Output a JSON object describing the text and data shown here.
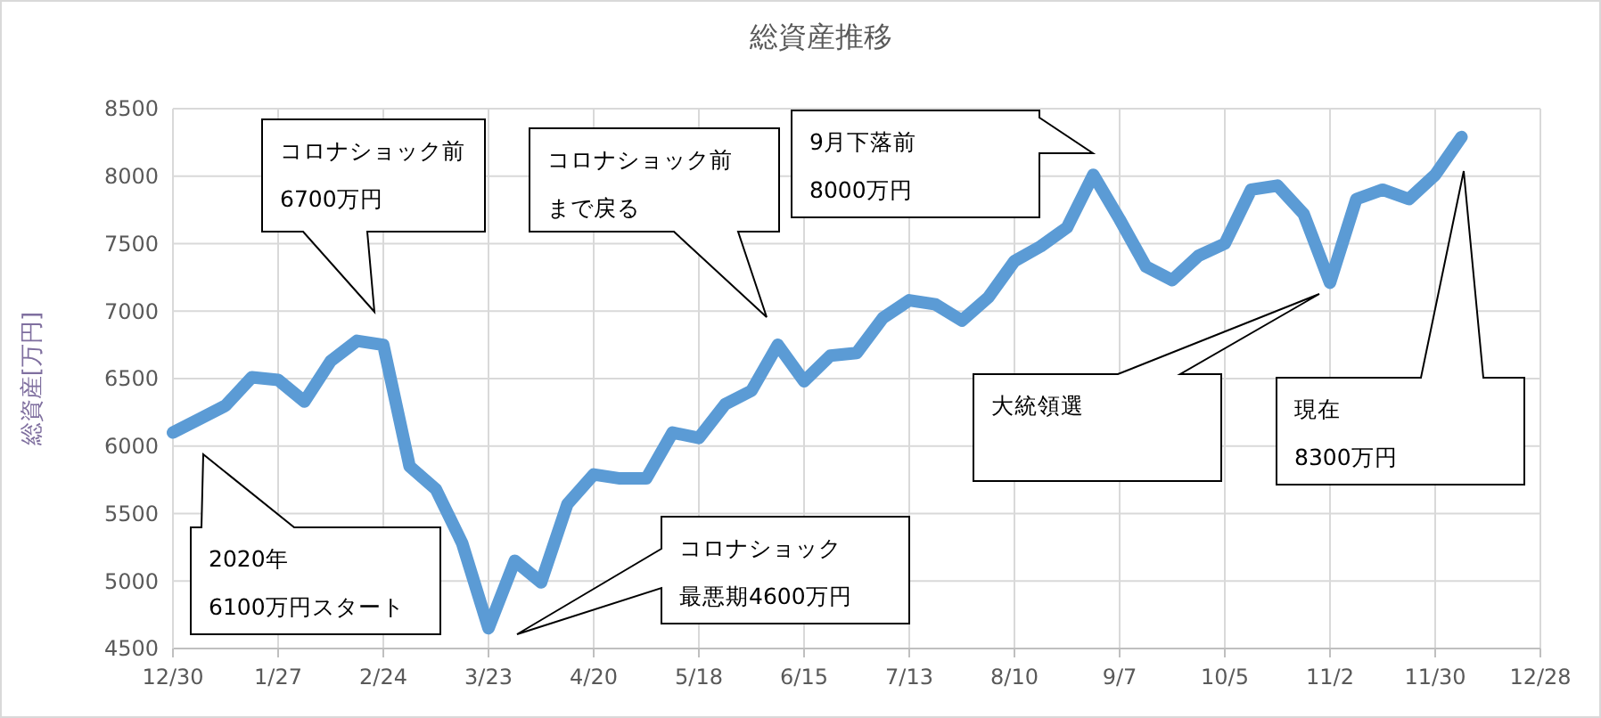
{
  "chart_data": {
    "type": "line",
    "title": "総資産推移",
    "ylabel": "総資産[万円]",
    "x": [
      "2019-12-30",
      "2020-01-06",
      "2020-01-13",
      "2020-01-20",
      "2020-01-27",
      "2020-02-03",
      "2020-02-10",
      "2020-02-17",
      "2020-02-24",
      "2020-03-02",
      "2020-03-09",
      "2020-03-16",
      "2020-03-23",
      "2020-03-30",
      "2020-04-06",
      "2020-04-13",
      "2020-04-20",
      "2020-04-27",
      "2020-05-04",
      "2020-05-11",
      "2020-05-18",
      "2020-05-25",
      "2020-06-01",
      "2020-06-08",
      "2020-06-15",
      "2020-06-22",
      "2020-06-29",
      "2020-07-06",
      "2020-07-13",
      "2020-07-20",
      "2020-07-27",
      "2020-08-03",
      "2020-08-10",
      "2020-08-17",
      "2020-08-24",
      "2020-08-31",
      "2020-09-07",
      "2020-09-14",
      "2020-09-21",
      "2020-09-28",
      "2020-10-05",
      "2020-10-12",
      "2020-10-19",
      "2020-10-26",
      "2020-11-02",
      "2020-11-09",
      "2020-11-16",
      "2020-11-23",
      "2020-11-30",
      "2020-12-07"
    ],
    "series": [
      {
        "color": "#5b9bd5",
        "values": [
          6100,
          6200,
          6300,
          6510,
          6490,
          6330,
          6630,
          6780,
          6750,
          5850,
          5680,
          5280,
          4650,
          5150,
          4990,
          5570,
          5790,
          5760,
          5760,
          6100,
          6060,
          6310,
          6410,
          6750,
          6480,
          6670,
          6690,
          6950,
          7080,
          7050,
          6930,
          7100,
          7370,
          7480,
          7620,
          8010,
          7680,
          7330,
          7230,
          7410,
          7500,
          7900,
          7930,
          7720,
          7210,
          7830,
          7900,
          7830,
          8010,
          8290
        ]
      }
    ],
    "xlim": [
      "2019-12-30",
      "2020-12-28"
    ],
    "xticks": [
      {
        "value": "2019-12-30",
        "label": "12/30"
      },
      {
        "value": "2020-01-27",
        "label": "1/27"
      },
      {
        "value": "2020-02-24",
        "label": "2/24"
      },
      {
        "value": "2020-03-23",
        "label": "3/23"
      },
      {
        "value": "2020-04-20",
        "label": "4/20"
      },
      {
        "value": "2020-05-18",
        "label": "5/18"
      },
      {
        "value": "2020-06-15",
        "label": "6/15"
      },
      {
        "value": "2020-07-13",
        "label": "7/13"
      },
      {
        "value": "2020-08-10",
        "label": "8/10"
      },
      {
        "value": "2020-09-07",
        "label": "9/7"
      },
      {
        "value": "2020-10-05",
        "label": "10/5"
      },
      {
        "value": "2020-11-02",
        "label": "11/2"
      },
      {
        "value": "2020-11-30",
        "label": "11/30"
      },
      {
        "value": "2020-12-28",
        "label": "12/28"
      }
    ],
    "ylim": [
      4500,
      8500
    ],
    "yticks": [
      4500,
      5000,
      5500,
      6000,
      6500,
      7000,
      7500,
      8000,
      8500
    ],
    "grid": true,
    "marker": "none",
    "line_style": "solid",
    "annotations": [
      "2020年6100万円スタート",
      "コロナショック前6700万円",
      "コロナショック前まで戻る",
      "9月下落前8000万円",
      "大統領選",
      "現在8300万円",
      "コロナショック最悪期4600万円"
    ]
  }
}
